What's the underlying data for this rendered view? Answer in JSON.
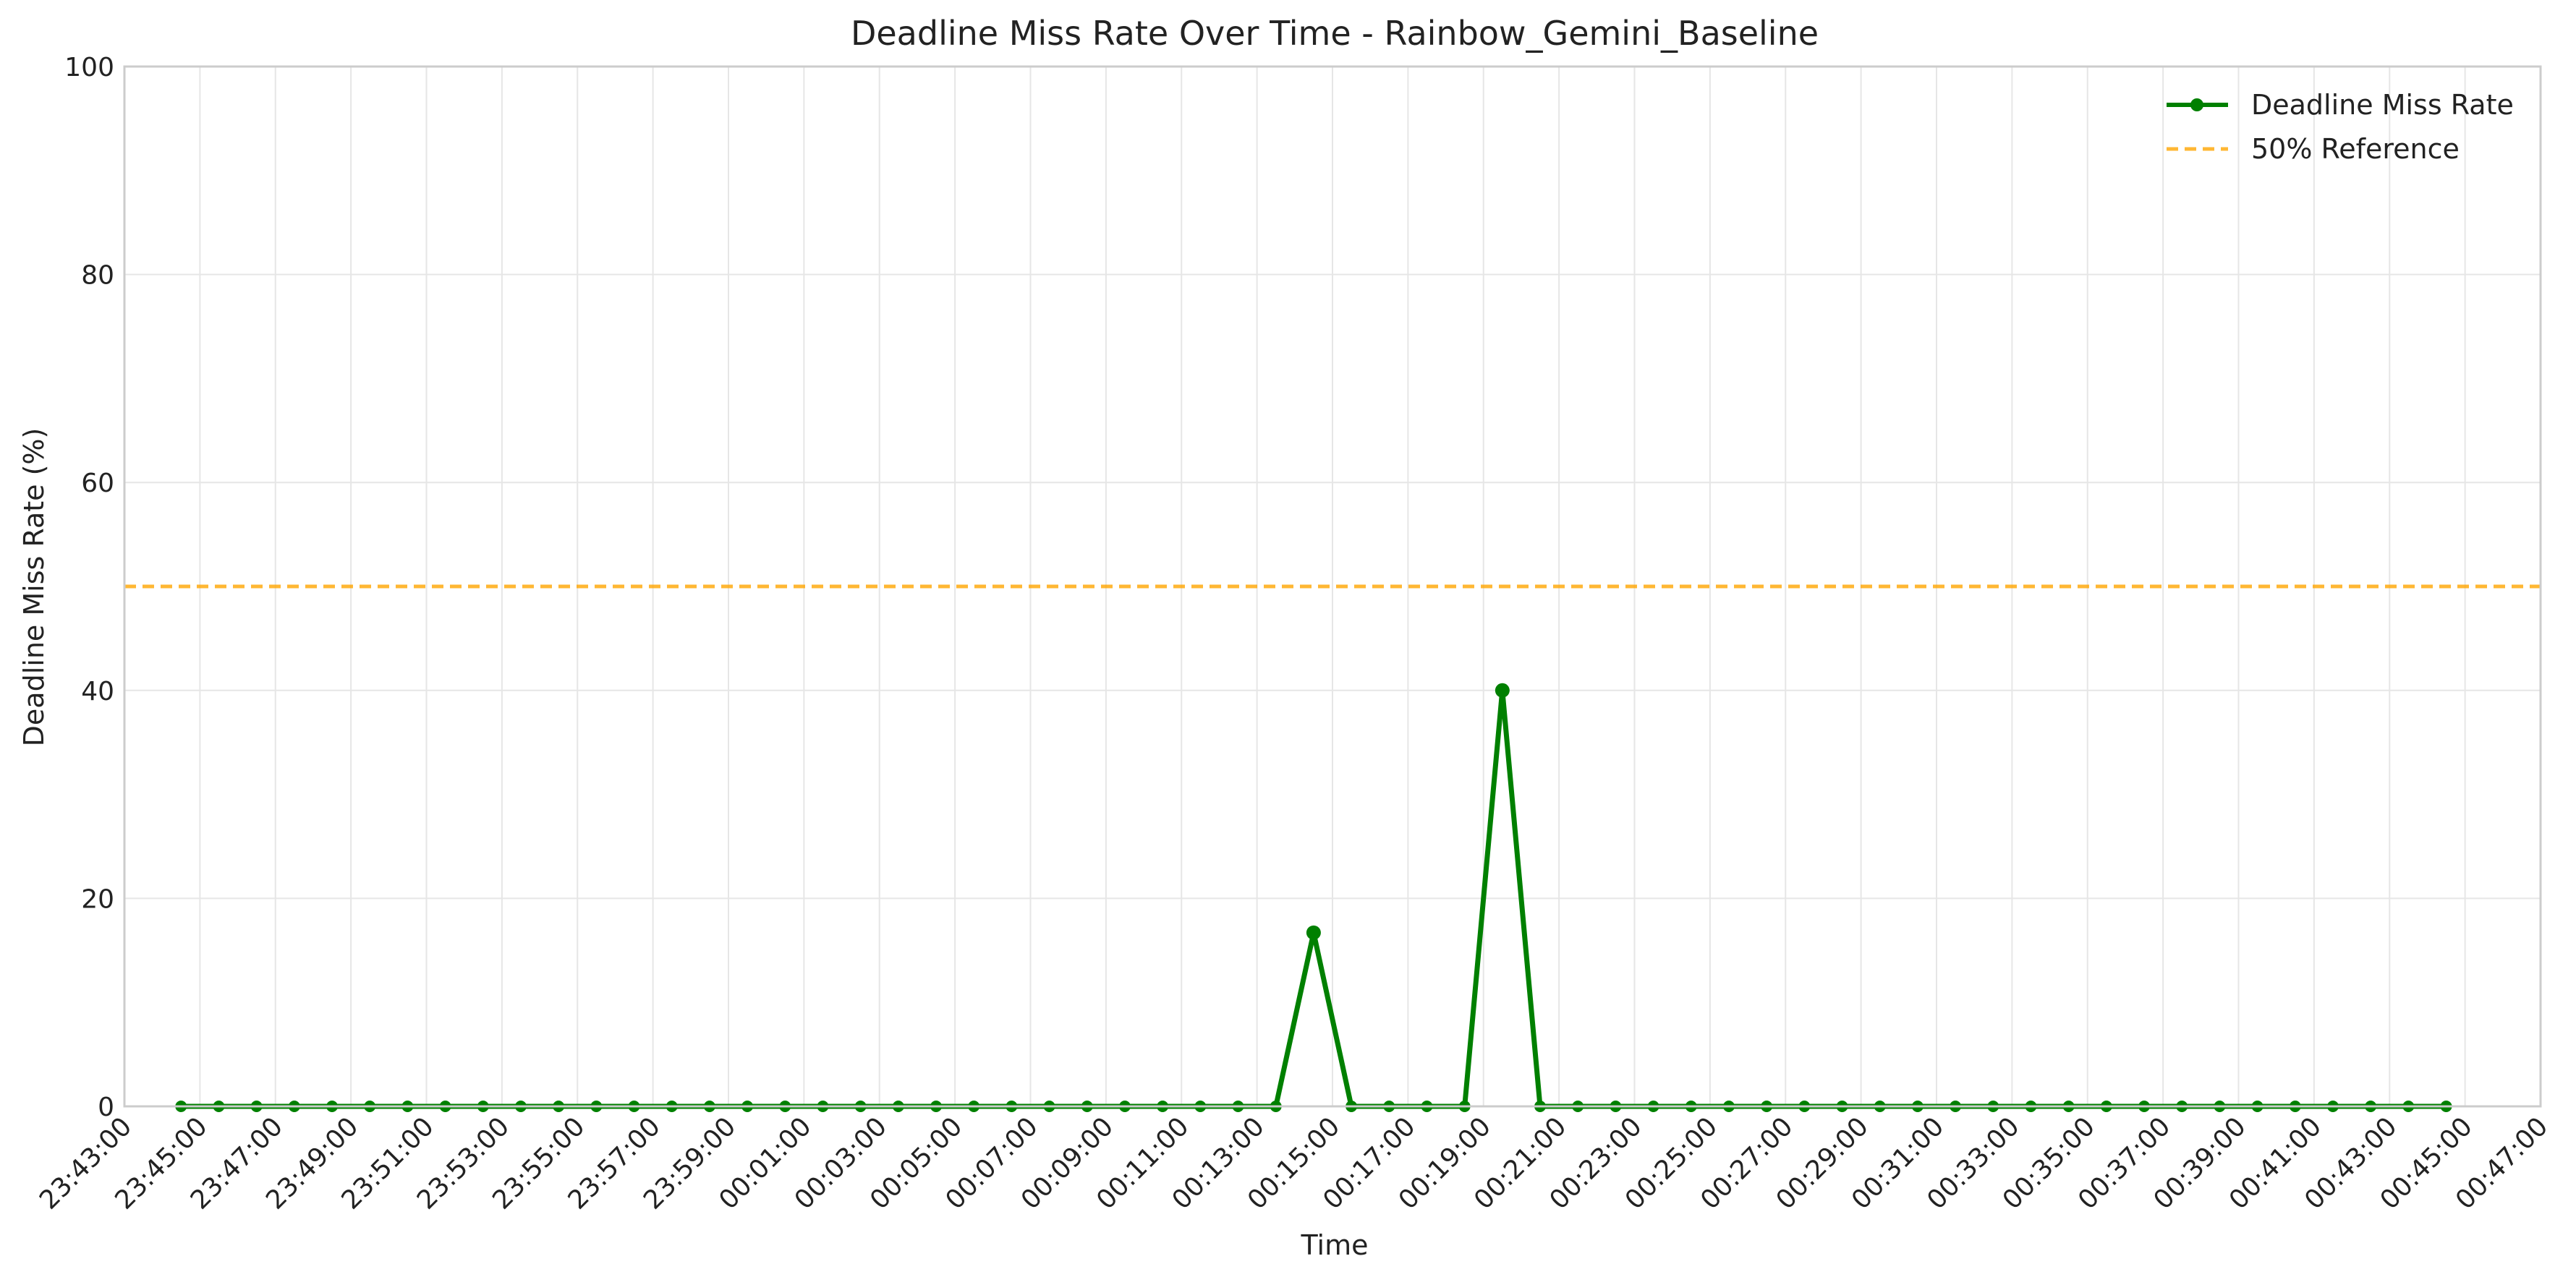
{
  "chart_data": {
    "type": "line",
    "title": "Deadline Miss Rate Over Time - Rainbow_Gemini_Baseline",
    "xlabel": "Time",
    "ylabel": "Deadline Miss Rate (%)",
    "ylim": [
      0,
      100
    ],
    "yticks": [
      0,
      20,
      40,
      60,
      80,
      100
    ],
    "xlim": [
      "23:43:00",
      "00:47:00"
    ],
    "xticks": [
      "23:43:00",
      "23:45:00",
      "23:47:00",
      "23:49:00",
      "23:51:00",
      "23:53:00",
      "23:55:00",
      "23:57:00",
      "23:59:00",
      "00:01:00",
      "00:03:00",
      "00:05:00",
      "00:07:00",
      "00:09:00",
      "00:11:00",
      "00:13:00",
      "00:15:00",
      "00:17:00",
      "00:19:00",
      "00:21:00",
      "00:23:00",
      "00:25:00",
      "00:27:00",
      "00:29:00",
      "00:31:00",
      "00:33:00",
      "00:35:00",
      "00:37:00",
      "00:39:00",
      "00:41:00",
      "00:43:00",
      "00:45:00",
      "00:47:00"
    ],
    "grid": true,
    "legend_position": "top-right",
    "series": [
      {
        "name": "Deadline Miss Rate",
        "color": "#008000",
        "marker": "circle",
        "x": [
          "23:44:30",
          "23:45:30",
          "23:46:30",
          "23:47:30",
          "23:48:30",
          "23:49:30",
          "23:50:30",
          "23:51:30",
          "23:52:30",
          "23:53:30",
          "23:54:30",
          "23:55:30",
          "23:56:30",
          "23:57:30",
          "23:58:30",
          "23:59:30",
          "00:00:30",
          "00:01:30",
          "00:02:30",
          "00:03:30",
          "00:04:30",
          "00:05:30",
          "00:06:30",
          "00:07:30",
          "00:08:30",
          "00:09:30",
          "00:10:30",
          "00:11:30",
          "00:12:30",
          "00:13:30",
          "00:14:30",
          "00:15:30",
          "00:16:30",
          "00:17:30",
          "00:18:30",
          "00:19:30",
          "00:20:30",
          "00:21:30",
          "00:22:30",
          "00:23:30",
          "00:24:30",
          "00:25:30",
          "00:26:30",
          "00:27:30",
          "00:28:30",
          "00:29:30",
          "00:30:30",
          "00:31:30",
          "00:32:30",
          "00:33:30",
          "00:34:30",
          "00:35:30",
          "00:36:30",
          "00:37:30",
          "00:38:30",
          "00:39:30",
          "00:40:30",
          "00:41:30",
          "00:42:30",
          "00:43:30",
          "00:44:30"
        ],
        "values": [
          0,
          0,
          0,
          0,
          0,
          0,
          0,
          0,
          0,
          0,
          0,
          0,
          0,
          0,
          0,
          0,
          0,
          0,
          0,
          0,
          0,
          0,
          0,
          0,
          0,
          0,
          0,
          0,
          0,
          0,
          16.7,
          0,
          0,
          0,
          0,
          40,
          0,
          0,
          0,
          0,
          0,
          0,
          0,
          0,
          0,
          0,
          0,
          0,
          0,
          0,
          0,
          0,
          0,
          0,
          0,
          0,
          0,
          0,
          0,
          0,
          0
        ]
      },
      {
        "name": "50% Reference",
        "color": "#FFA500",
        "style": "dashed",
        "value": 50
      }
    ]
  }
}
